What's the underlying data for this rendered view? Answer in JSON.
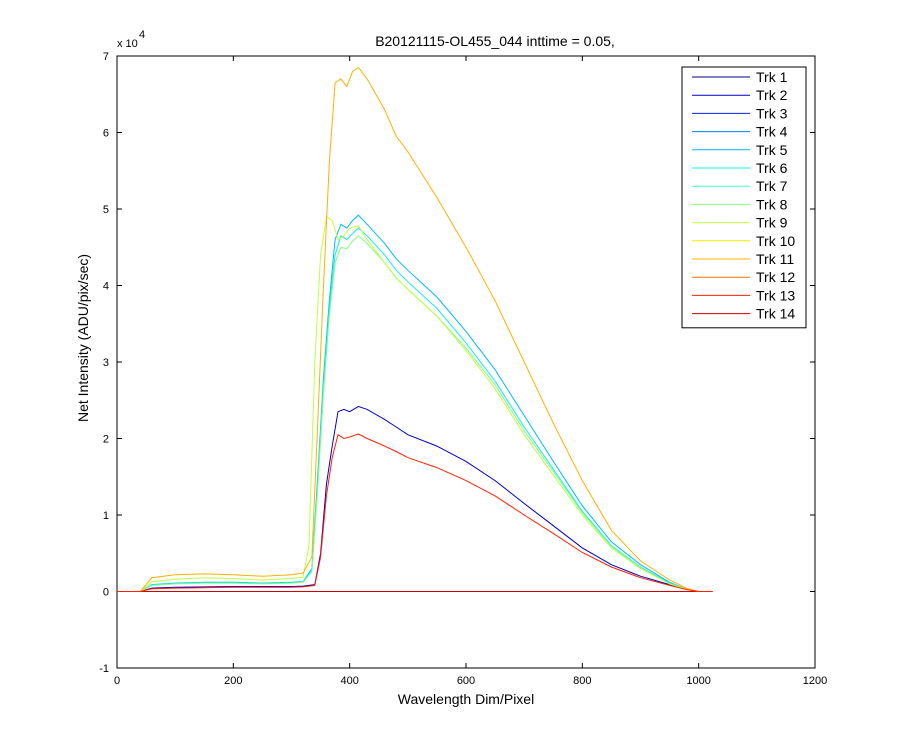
{
  "chart_data": {
    "type": "line",
    "title": "B20121115-OL455_044 inttime = 0.05,",
    "xlabel": "Wavelength Dim/Pixel",
    "ylabel": "Net Intensity (ADU/pix/sec)",
    "xlim": [
      0,
      1200
    ],
    "ylim": [
      -10000,
      70000
    ],
    "xticks": [
      0,
      200,
      400,
      600,
      800,
      1000,
      1200
    ],
    "xtick_labels": [
      "0",
      "200",
      "400",
      "600",
      "800",
      "1000",
      "1200"
    ],
    "yticks": [
      -10000,
      0,
      10000,
      20000,
      30000,
      40000,
      50000,
      60000,
      70000
    ],
    "ytick_labels": [
      "-1",
      "0",
      "1",
      "2",
      "3",
      "4",
      "5",
      "6",
      "7"
    ],
    "y_multiplier": {
      "base": "x 10",
      "exponent": "4"
    },
    "grid": false,
    "legend_position": "top-right",
    "series": [
      {
        "name": "Trk 1",
        "color": "#00008f",
        "x": [
          0,
          1024
        ],
        "y": [
          0,
          0
        ]
      },
      {
        "name": "Trk 2",
        "color": "#0000c8",
        "x": [
          0,
          40,
          60,
          100,
          150,
          200,
          250,
          300,
          320,
          340,
          350,
          360,
          370,
          380,
          390,
          400,
          415,
          430,
          460,
          480,
          500,
          550,
          600,
          650,
          700,
          750,
          800,
          850,
          900,
          950,
          980,
          1000,
          1024
        ],
        "y": [
          0,
          0,
          450,
          550,
          600,
          650,
          650,
          650,
          700,
          900,
          5000,
          14000,
          19000,
          23500,
          23800,
          23500,
          24200,
          23800,
          22500,
          21500,
          20500,
          19000,
          17000,
          14500,
          11500,
          8600,
          5700,
          3500,
          2000,
          900,
          300,
          0,
          0
        ]
      },
      {
        "name": "Trk 3",
        "color": "#0020ff",
        "x": [
          0,
          1024
        ],
        "y": [
          0,
          0
        ]
      },
      {
        "name": "Trk 4",
        "color": "#0080ff",
        "x": [
          0,
          1024
        ],
        "y": [
          0,
          0
        ]
      },
      {
        "name": "Trk 5",
        "color": "#00b8ff",
        "x": [
          0,
          40,
          60,
          100,
          150,
          200,
          250,
          300,
          320,
          335,
          345,
          355,
          365,
          375,
          385,
          395,
          405,
          415,
          430,
          460,
          480,
          500,
          550,
          600,
          650,
          700,
          750,
          800,
          850,
          900,
          950,
          980,
          1000,
          1024
        ],
        "y": [
          0,
          0,
          900,
          1100,
          1200,
          1200,
          1100,
          1200,
          1300,
          3000,
          15000,
          28000,
          38000,
          46000,
          48000,
          47500,
          48500,
          49200,
          48000,
          45500,
          43500,
          42000,
          38500,
          34000,
          29000,
          23000,
          17000,
          11200,
          6500,
          3500,
          1200,
          300,
          0,
          0
        ]
      },
      {
        "name": "Trk 6",
        "color": "#10f0f0",
        "x": [
          0,
          40,
          60,
          100,
          150,
          200,
          250,
          300,
          320,
          335,
          345,
          355,
          365,
          375,
          385,
          395,
          405,
          415,
          430,
          460,
          480,
          500,
          550,
          600,
          650,
          700,
          750,
          800,
          850,
          900,
          950,
          980,
          1000,
          1024
        ],
        "y": [
          0,
          0,
          850,
          1050,
          1150,
          1150,
          1050,
          1150,
          1250,
          2800,
          14000,
          27000,
          37000,
          44000,
          46500,
          46000,
          46800,
          47500,
          46500,
          44000,
          42000,
          40500,
          37000,
          32500,
          27500,
          21500,
          16000,
          10500,
          6000,
          3200,
          1100,
          300,
          0,
          0
        ]
      },
      {
        "name": "Trk 7",
        "color": "#40ffc0",
        "x": [
          0,
          1024
        ],
        "y": [
          0,
          0
        ]
      },
      {
        "name": "Trk 8",
        "color": "#80ff80",
        "x": [
          0,
          40,
          60,
          100,
          150,
          200,
          250,
          300,
          320,
          335,
          345,
          355,
          365,
          375,
          385,
          395,
          405,
          415,
          430,
          460,
          480,
          500,
          550,
          600,
          650,
          700,
          750,
          800,
          850,
          900,
          950,
          980,
          1000,
          1024
        ],
        "y": [
          0,
          0,
          800,
          1000,
          1100,
          1100,
          1000,
          1100,
          1200,
          2600,
          13500,
          26000,
          36000,
          43000,
          45000,
          44800,
          45800,
          46500,
          45500,
          43000,
          41000,
          39500,
          36000,
          31800,
          27000,
          21000,
          15700,
          10300,
          5900,
          3100,
          1000,
          300,
          0,
          0
        ]
      },
      {
        "name": "Trk 9",
        "color": "#c0ff40",
        "x": [
          0,
          40,
          60,
          100,
          150,
          200,
          250,
          300,
          320,
          330,
          340,
          350,
          360,
          370,
          380,
          390,
          400,
          415,
          430,
          460,
          480,
          500,
          550,
          600,
          650,
          700,
          750,
          800,
          850,
          900,
          950,
          980,
          1000,
          1024
        ],
        "y": [
          0,
          0,
          1300,
          1600,
          1800,
          1700,
          1500,
          1700,
          1900,
          6000,
          30000,
          44000,
          49000,
          48500,
          46000,
          46500,
          47500,
          47800,
          46000,
          43000,
          41000,
          39500,
          36000,
          31500,
          26500,
          20500,
          15200,
          10000,
          5700,
          3000,
          1000,
          300,
          0,
          0
        ]
      },
      {
        "name": "Trk 10",
        "color": "#f0f000",
        "x": [
          0,
          1024
        ],
        "y": [
          0,
          0
        ]
      },
      {
        "name": "Trk 11",
        "color": "#ffb000",
        "x": [
          0,
          40,
          60,
          100,
          150,
          200,
          250,
          300,
          320,
          335,
          345,
          355,
          365,
          375,
          385,
          395,
          405,
          415,
          430,
          460,
          480,
          500,
          550,
          600,
          650,
          700,
          750,
          800,
          850,
          900,
          950,
          980,
          1000,
          1024
        ],
        "y": [
          0,
          0,
          1800,
          2200,
          2300,
          2200,
          2000,
          2200,
          2400,
          4500,
          22000,
          40000,
          56000,
          66500,
          67000,
          66000,
          68000,
          68500,
          67000,
          63000,
          59500,
          57500,
          51500,
          45000,
          38000,
          30000,
          22000,
          14500,
          8000,
          4000,
          1500,
          400,
          0,
          0
        ]
      },
      {
        "name": "Trk 12",
        "color": "#ff7000",
        "x": [
          0,
          1024
        ],
        "y": [
          0,
          0
        ]
      },
      {
        "name": "Trk 13",
        "color": "#ff2000",
        "x": [
          0,
          40,
          60,
          100,
          150,
          200,
          250,
          300,
          320,
          340,
          350,
          360,
          370,
          380,
          390,
          400,
          415,
          430,
          460,
          480,
          500,
          550,
          600,
          650,
          700,
          750,
          800,
          850,
          900,
          950,
          980,
          1000,
          1024
        ],
        "y": [
          0,
          0,
          350,
          450,
          500,
          550,
          550,
          550,
          600,
          800,
          4500,
          12500,
          17500,
          20500,
          20000,
          20200,
          20600,
          20000,
          19000,
          18300,
          17500,
          16200,
          14500,
          12500,
          10000,
          7600,
          5100,
          3200,
          1800,
          800,
          250,
          0,
          0
        ]
      },
      {
        "name": "Trk 14",
        "color": "#d00000",
        "x": [
          0,
          1024
        ],
        "y": [
          0,
          0
        ]
      }
    ]
  }
}
